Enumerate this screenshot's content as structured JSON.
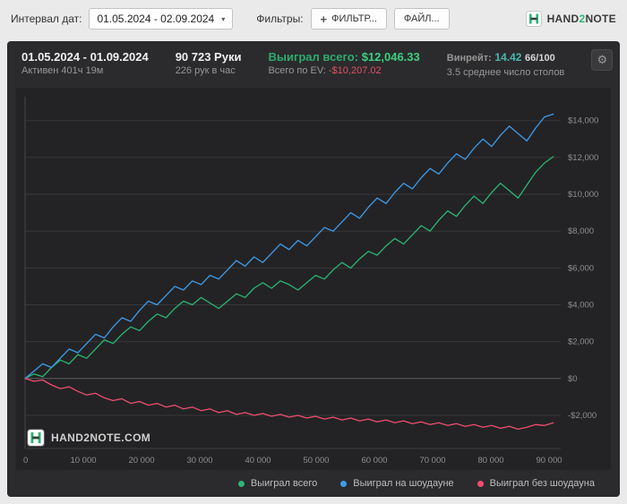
{
  "toolbar": {
    "date_label": "Интервал дат:",
    "date_value": "01.05.2024 - 02.09.2024",
    "filters_label": "Фильтры:",
    "filter_button": "ФИЛЬТР...",
    "file_button": "ФАЙЛ...",
    "brand": {
      "pre": "HAND",
      "digit": "2",
      "post": "NOTE"
    }
  },
  "header": {
    "date_range": "01.05.2024 - 01.09.2024",
    "active_time": "Активен 401ч 19м",
    "hands": "90 723 Руки",
    "hands_per_hour": "226 рук в час",
    "won_label": "Выиграл всего:",
    "won_value": "$12,046.33",
    "ev_label": "Всего по EV:",
    "ev_value": "-$10,207.02",
    "winrate_label": "Винрейт:",
    "winrate_value": "14.42",
    "winrate_scale": "66/100",
    "avg_tables": "3.5 среднее число столов"
  },
  "watermark": "HAND2NOTE.COM",
  "colors": {
    "accent_green": "#2bb673",
    "win_green": "#3bd07f",
    "loss_red": "#e25063",
    "winrate_teal": "#49b8b0"
  },
  "chart_data": {
    "type": "line",
    "title": "",
    "xlabel": "",
    "ylabel": "",
    "x_max": 90723,
    "xlim": 92000,
    "ylim": [
      -3800,
      15300
    ],
    "grid": "horizontal",
    "legend_position": "bottom",
    "x_ticks": [
      {
        "value": 0,
        "label": "0"
      },
      {
        "value": 10000,
        "label": "10 000"
      },
      {
        "value": 20000,
        "label": "20 000"
      },
      {
        "value": 30000,
        "label": "30 000"
      },
      {
        "value": 40000,
        "label": "40 000"
      },
      {
        "value": 50000,
        "label": "50 000"
      },
      {
        "value": 60000,
        "label": "60 000"
      },
      {
        "value": 70000,
        "label": "70 000"
      },
      {
        "value": 80000,
        "label": "80 000"
      },
      {
        "value": 90000,
        "label": "90 000"
      }
    ],
    "y_ticks": [
      {
        "value": 14000,
        "label": "$14,000"
      },
      {
        "value": 12000,
        "label": "$12,000"
      },
      {
        "value": 10000,
        "label": "$10,000"
      },
      {
        "value": 8000,
        "label": "$8,000"
      },
      {
        "value": 6000,
        "label": "$6,000"
      },
      {
        "value": 4000,
        "label": "$4,000"
      },
      {
        "value": 2000,
        "label": "$2,000"
      },
      {
        "value": 0,
        "label": "$0"
      },
      {
        "value": -2000,
        "label": "-$2,000"
      }
    ],
    "series": [
      {
        "name": "Выиграл всего",
        "color": "#2bb673",
        "final_value": 12046.33,
        "values": [
          0,
          250,
          100,
          600,
          1000,
          800,
          1300,
          1100,
          1600,
          2100,
          1900,
          2400,
          2800,
          2600,
          3100,
          3500,
          3300,
          3800,
          4200,
          4000,
          4400,
          4100,
          3800,
          4200,
          4600,
          4400,
          4900,
          5200,
          4900,
          5300,
          5100,
          4800,
          5200,
          5600,
          5400,
          5900,
          6300,
          6000,
          6500,
          6900,
          6700,
          7200,
          7600,
          7300,
          7800,
          8300,
          8000,
          8600,
          9100,
          8800,
          9400,
          9900,
          9500,
          10100,
          10600,
          10200,
          9800,
          10500,
          11200,
          11700,
          12046
        ]
      },
      {
        "name": "Выиграл на шоудауне",
        "color": "#3e9be9",
        "final_value": 14350,
        "values": [
          0,
          400,
          800,
          600,
          1100,
          1600,
          1400,
          1900,
          2400,
          2200,
          2800,
          3300,
          3100,
          3700,
          4200,
          4000,
          4500,
          5000,
          4800,
          5300,
          5100,
          5600,
          5400,
          5900,
          6400,
          6100,
          6600,
          6300,
          6800,
          7300,
          7000,
          7500,
          7200,
          7700,
          8200,
          8000,
          8500,
          9000,
          8700,
          9300,
          9800,
          9500,
          10100,
          10600,
          10300,
          10900,
          11400,
          11100,
          11700,
          12200,
          11900,
          12500,
          13000,
          12600,
          13200,
          13700,
          13300,
          12900,
          13600,
          14200,
          14350
        ]
      },
      {
        "name": "Выиграл без шоудауна",
        "color": "#ee4d6e",
        "final_value": -2400,
        "values": [
          0,
          -150,
          -80,
          -350,
          -550,
          -450,
          -700,
          -900,
          -800,
          -1050,
          -1200,
          -1100,
          -1350,
          -1250,
          -1450,
          -1350,
          -1550,
          -1450,
          -1650,
          -1550,
          -1750,
          -1650,
          -1850,
          -1750,
          -1950,
          -1850,
          -2000,
          -1900,
          -2050,
          -1950,
          -2100,
          -2000,
          -2150,
          -2050,
          -2200,
          -2100,
          -2250,
          -2150,
          -2300,
          -2200,
          -2350,
          -2250,
          -2400,
          -2300,
          -2450,
          -2350,
          -2500,
          -2400,
          -2550,
          -2450,
          -2600,
          -2500,
          -2650,
          -2550,
          -2700,
          -2600,
          -2750,
          -2650,
          -2500,
          -2550,
          -2400
        ]
      }
    ]
  }
}
